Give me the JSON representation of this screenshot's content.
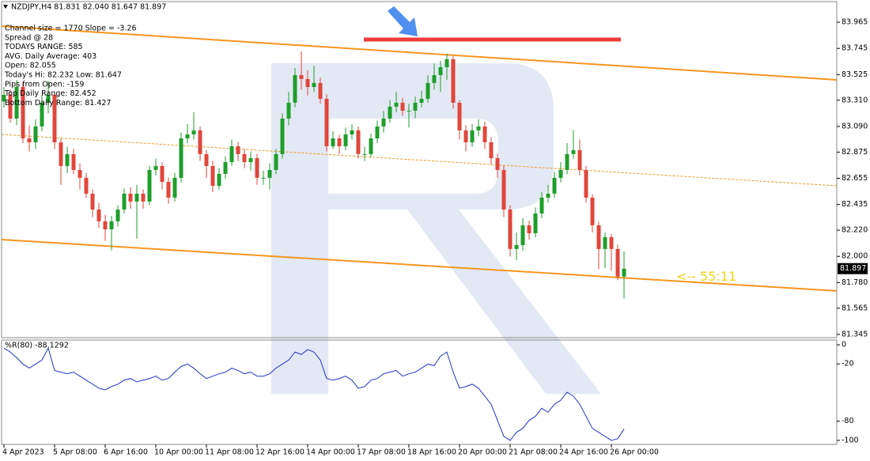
{
  "chart_data": [
    {
      "type": "candlestick",
      "title": "NZDJPY,H4  81.831 82.040 81.647 81.897",
      "info": [
        "Channel size = 1770 Slope = -3.26",
        "Spread @ 28",
        "TODAYS RANGE: 585",
        "AVG. Daily Average: 403",
        "Open: 82.055",
        "Today's Hi: 82.232  Low: 81.647",
        "Pips from Open: -159",
        "Top Daily Range: 82.452",
        "Bottom Daily Range: 81.427"
      ],
      "categories": [
        "4 Apr 2023",
        null,
        null,
        null,
        null,
        null,
        null,
        null,
        "5 Apr 08:00",
        null,
        null,
        null,
        null,
        null,
        null,
        null,
        "6 Apr 16:00",
        null,
        null,
        null,
        null,
        null,
        null,
        null,
        "10 Apr 00:00",
        null,
        null,
        null,
        null,
        null,
        null,
        null,
        "11 Apr 08:00",
        null,
        null,
        null,
        null,
        null,
        null,
        null,
        "12 Apr 16:00",
        null,
        null,
        null,
        null,
        null,
        null,
        null,
        "14 Apr 00:00",
        null,
        null,
        null,
        null,
        null,
        null,
        null,
        "17 Apr 08:00",
        null,
        null,
        null,
        null,
        null,
        null,
        null,
        "18 Apr 16:00",
        null,
        null,
        null,
        null,
        null,
        null,
        null,
        "20 Apr 00:00",
        null,
        null,
        null,
        null,
        null,
        null,
        null,
        "21 Apr 08:00",
        null,
        null,
        null,
        null,
        null,
        null,
        null,
        "24 Apr 16:00",
        null,
        null,
        null,
        null,
        null,
        null,
        null,
        "26 Apr 00:00",
        null,
        null
      ],
      "open": [
        83.3,
        83.355,
        83.156,
        83.421,
        82.99,
        82.957,
        83.09,
        83.289,
        83.355,
        82.957,
        82.758,
        82.858,
        82.725,
        82.659,
        82.526,
        82.393,
        82.294,
        82.227,
        82.294,
        82.393,
        82.526,
        82.46,
        82.526,
        82.46,
        82.725,
        82.758,
        82.625,
        82.493,
        82.659,
        82.99,
        83.023,
        83.057,
        82.858,
        82.758,
        82.592,
        82.692,
        82.791,
        82.924,
        82.858,
        82.791,
        82.824,
        82.659,
        82.659,
        82.725,
        82.858,
        83.156,
        83.289,
        83.521,
        83.488,
        83.421,
        83.455,
        83.322,
        82.924,
        82.99,
        82.924,
        83.023,
        83.057,
        82.858,
        82.858,
        82.99,
        83.09,
        83.156,
        83.256,
        83.289,
        83.222,
        83.222,
        83.289,
        83.322,
        83.455,
        83.521,
        83.587,
        83.654,
        83.289,
        83.057,
        82.957,
        83.057,
        83.09,
        82.957,
        82.824,
        82.725,
        82.393,
        82.062,
        82.095,
        82.261,
        82.194,
        82.36,
        82.493,
        82.526,
        82.659,
        82.725,
        82.858,
        82.891,
        82.725,
        82.493,
        82.261,
        82.062,
        82.161,
        82.062,
        81.831
      ],
      "high": [
        83.42,
        83.4,
        83.48,
        83.46,
        83.1,
        83.15,
        83.35,
        83.47,
        83.38,
        82.99,
        82.92,
        82.9,
        82.78,
        82.7,
        82.56,
        82.45,
        82.35,
        82.34,
        82.43,
        82.57,
        82.58,
        82.6,
        82.56,
        82.76,
        82.82,
        82.79,
        82.66,
        82.7,
        83.04,
        83.11,
        83.21,
        83.09,
        82.89,
        82.8,
        82.74,
        82.84,
        82.98,
        82.96,
        82.9,
        82.88,
        82.86,
        82.72,
        82.78,
        82.9,
        83.2,
        83.38,
        83.58,
        83.72,
        83.56,
        83.6,
        83.5,
        83.36,
        83.05,
        83.02,
        83.08,
        83.11,
        83.09,
        82.92,
        83.03,
        83.14,
        83.22,
        83.31,
        83.38,
        83.33,
        83.28,
        83.34,
        83.39,
        83.52,
        83.62,
        83.64,
        83.7,
        83.68,
        83.31,
        83.1,
        83.11,
        83.15,
        83.13,
        83.0,
        82.86,
        82.76,
        82.43,
        82.2,
        82.32,
        82.3,
        82.41,
        82.54,
        82.6,
        82.71,
        82.79,
        82.95,
        83.06,
        82.98,
        82.76,
        82.52,
        82.29,
        82.2,
        82.19,
        82.1,
        82.04
      ],
      "low": [
        83.25,
        83.12,
        83.1,
        82.95,
        82.88,
        82.9,
        83.05,
        83.2,
        82.9,
        82.6,
        82.7,
        82.69,
        82.56,
        82.49,
        82.33,
        82.24,
        82.13,
        82.05,
        82.25,
        82.36,
        82.4,
        82.15,
        82.4,
        82.43,
        82.68,
        82.56,
        82.44,
        82.46,
        82.62,
        82.95,
        82.98,
        82.8,
        82.66,
        82.54,
        82.56,
        82.65,
        82.76,
        82.8,
        82.74,
        82.72,
        82.6,
        82.6,
        82.56,
        82.69,
        82.82,
        83.1,
        83.25,
        83.4,
        83.35,
        83.38,
        83.28,
        82.88,
        82.9,
        82.86,
        82.89,
        82.98,
        82.82,
        82.8,
        82.83,
        82.95,
        83.04,
        83.12,
        83.21,
        83.18,
        83.08,
        83.16,
        83.25,
        83.29,
        83.4,
        83.38,
        83.48,
        83.24,
        82.98,
        82.88,
        82.92,
        83.01,
        82.9,
        82.77,
        82.66,
        82.33,
        82.0,
        81.97,
        82.05,
        82.14,
        82.16,
        82.32,
        82.45,
        82.49,
        82.62,
        82.69,
        82.82,
        82.68,
        82.45,
        82.2,
        81.89,
        81.9,
        81.88,
        81.8,
        81.647
      ],
      "close": [
        83.355,
        83.156,
        83.421,
        82.99,
        82.957,
        83.09,
        83.289,
        83.355,
        82.957,
        82.758,
        82.858,
        82.725,
        82.659,
        82.526,
        82.393,
        82.294,
        82.227,
        82.294,
        82.393,
        82.526,
        82.46,
        82.526,
        82.46,
        82.725,
        82.758,
        82.625,
        82.493,
        82.659,
        82.99,
        83.023,
        83.057,
        82.858,
        82.758,
        82.592,
        82.692,
        82.791,
        82.924,
        82.858,
        82.791,
        82.824,
        82.659,
        82.659,
        82.725,
        82.858,
        83.156,
        83.289,
        83.521,
        83.488,
        83.421,
        83.455,
        83.322,
        82.924,
        82.99,
        82.924,
        83.023,
        83.057,
        82.858,
        82.858,
        82.99,
        83.09,
        83.156,
        83.256,
        83.289,
        83.222,
        83.222,
        83.289,
        83.322,
        83.455,
        83.521,
        83.587,
        83.654,
        83.289,
        83.057,
        82.957,
        83.057,
        83.09,
        82.957,
        82.824,
        82.725,
        82.393,
        82.062,
        82.095,
        82.261,
        82.194,
        82.36,
        82.493,
        82.526,
        82.659,
        82.725,
        82.858,
        82.891,
        82.725,
        82.493,
        82.261,
        82.062,
        82.161,
        82.062,
        81.83,
        81.897
      ],
      "up_color": "#1f9e2c",
      "down_color": "#e0463c",
      "channel": [
        {
          "values": [
            83.932,
            83.481
          ],
          "color": "#f5961e",
          "dashed": false
        },
        {
          "values": [
            83.023,
            82.592
          ],
          "color": "#f5961e",
          "dashed": true
        },
        {
          "values": [
            82.141,
            81.71
          ],
          "color": "#f5961e",
          "dashed": false
        }
      ],
      "level": {
        "value": 83.819,
        "color": "#f03c3c"
      },
      "price_tag": "81.897",
      "countdown": "<-- 55:11",
      "ylim": [
        81.318,
        84.151
      ],
      "yticks": [
        83.965,
        83.745,
        83.525,
        {
          "value": 83.31,
          "label": "83.310"
        },
        {
          "value": 83.09,
          "label": "83.090"
        },
        82.875,
        82.655,
        82.435,
        {
          "value": 82.22,
          "label": "82.220"
        },
        {
          "value": 82,
          "label": "82.000"
        },
        {
          "value": 81.78,
          "label": "81.780"
        },
        81.565,
        81.345
      ]
    },
    {
      "type": "line",
      "title": "%R(80) -88.1292",
      "color": "#2233cc",
      "values": [
        -3.4,
        -7.6,
        -13.4,
        -20.2,
        -24.4,
        -20.2,
        -16.0,
        -3.4,
        -26.9,
        -28.6,
        -30.3,
        -28.6,
        -32.8,
        -37.0,
        -41.2,
        -45.4,
        -47.1,
        -43.7,
        -41.2,
        -37.0,
        -35.3,
        -38.7,
        -37.0,
        -35.3,
        -32.8,
        -37.0,
        -35.3,
        -28.6,
        -22.7,
        -20.2,
        -24.4,
        -30.3,
        -35.3,
        -32.8,
        -30.3,
        -28.6,
        -24.4,
        -26.9,
        -30.3,
        -28.6,
        -32.8,
        -32.8,
        -30.3,
        -24.4,
        -20.2,
        -16.0,
        -7.6,
        -10.1,
        -5.0,
        -7.6,
        -16.0,
        -35.3,
        -37.0,
        -35.3,
        -32.8,
        -37.0,
        -45.4,
        -43.7,
        -37.0,
        -35.3,
        -30.3,
        -28.6,
        -26.9,
        -32.8,
        -30.3,
        -28.6,
        -24.4,
        -20.2,
        -21.8,
        -11.8,
        -7.6,
        -28.6,
        -45.4,
        -43.7,
        -41.2,
        -45.4,
        -53.8,
        -62.2,
        -79.0,
        -95.8,
        -100.0,
        -91.6,
        -87.4,
        -79.0,
        -74.8,
        -66.4,
        -70.6,
        -62.2,
        -58.0,
        -49.6,
        -53.8,
        -62.2,
        -74.8,
        -87.4,
        -91.6,
        -95.8,
        -100.0,
        -98.3,
        -88.1292
      ],
      "ylim": [
        -104.2,
        5
      ],
      "yticks": [
        0,
        -20,
        -80,
        -100
      ]
    }
  ]
}
